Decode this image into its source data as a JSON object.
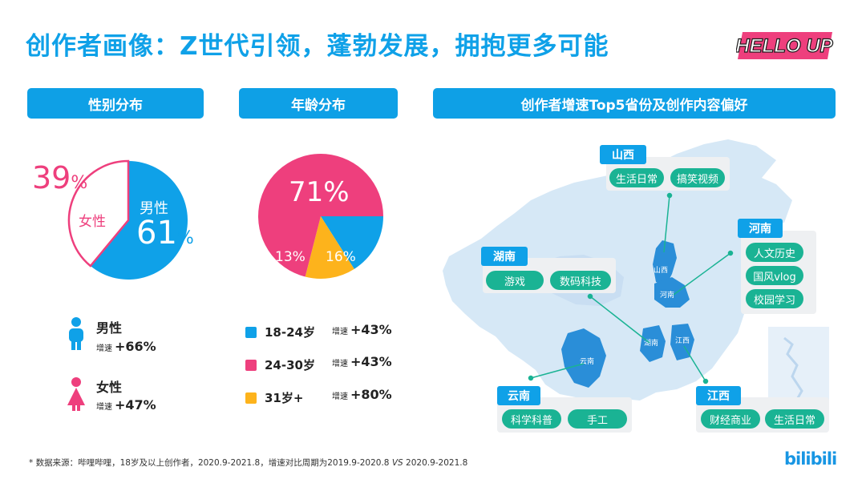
{
  "title": "创作者画像：Z世代引领，蓬勃发展，拥抱更多可能",
  "logo_text": "HELLO UP",
  "brand": "bilibili",
  "colors": {
    "blue": "#0fa1e8",
    "pink": "#ee3f7d",
    "yellow": "#fdb31c",
    "teal": "#1ab394"
  },
  "sections": {
    "gender": "性别分布",
    "age": "年龄分布",
    "map": "创作者增速Top5省份及创作内容偏好"
  },
  "chart_data": [
    {
      "type": "pie",
      "slices": [
        {
          "name": "男性",
          "value": 61,
          "label": "61%",
          "color": "#0fa1e8"
        },
        {
          "name": "女性",
          "value": 39,
          "label": "39%",
          "color": "#ee3f7d"
        }
      ]
    },
    {
      "type": "pie",
      "slices": [
        {
          "name": "18-24岁",
          "value": 16,
          "label": "16%",
          "color": "#0fa1e8"
        },
        {
          "name": "24-30岁",
          "value": 71,
          "label": "71%",
          "color": "#ee3f7d"
        },
        {
          "name": "31岁+",
          "value": 13,
          "label": "13%",
          "color": "#fdb31c"
        }
      ]
    }
  ],
  "gender_pie": {
    "male_name": "男性",
    "male_value": "61",
    "female_name": "女性",
    "female_value": "39",
    "pct": "%"
  },
  "gender_legend": [
    {
      "name": "男性",
      "growth_label": "增速",
      "growth": "+66%",
      "icon": "male-icon"
    },
    {
      "name": "女性",
      "growth_label": "增速",
      "growth": "+47%",
      "icon": "female-icon"
    }
  ],
  "age_pie": {
    "big": "71%",
    "small1": "13%",
    "small2": "16%"
  },
  "age_legend": [
    {
      "name": "18-24岁",
      "growth_label": "增速",
      "growth": "+43%",
      "color": "#0fa1e8"
    },
    {
      "name": "24-30岁",
      "growth_label": "增速",
      "growth": "+43%",
      "color": "#ee3f7d"
    },
    {
      "name": "31岁+",
      "growth_label": "增速",
      "growth": "+80%",
      "color": "#fdb31c"
    }
  ],
  "provinces": {
    "shanxi": {
      "name": "山西",
      "map_label": "山西",
      "tags": [
        "生活日常",
        "搞笑视频"
      ]
    },
    "henan": {
      "name": "河南",
      "map_label": "河南",
      "tags": [
        "人文历史",
        "国风vlog",
        "校园学习"
      ]
    },
    "hunan": {
      "name": "湖南",
      "map_label": "湖南",
      "tags": [
        "游戏",
        "数码科技"
      ]
    },
    "yunnan": {
      "name": "云南",
      "map_label": "云南",
      "tags": [
        "科学科普",
        "手工"
      ]
    },
    "jiangxi": {
      "name": "江西",
      "map_label": "江西",
      "tags": [
        "财经商业",
        "生活日常"
      ]
    }
  },
  "footnote": {
    "main": "* 数据来源：哔哩哔哩，18岁及以上创作者，2020.9-2021.8，增速对比周期为2019.9-2020.8",
    "vs": "VS",
    "end": "2020.9-2021.8"
  }
}
